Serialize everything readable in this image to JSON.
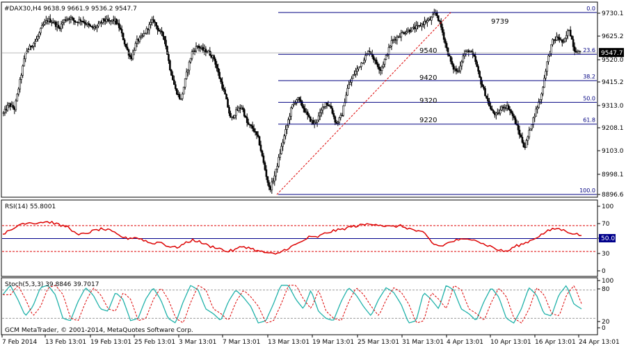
{
  "symbol_header": "#DAX30,H4  9638.9 9661.9 9536.2 9547.7",
  "footer_text": "GCM MetaTrader, © 2001-2014, MetaQuotes Software Corp.",
  "colors": {
    "up_candle": "#ffffff",
    "down_candle": "#000000",
    "rsi_line": "#dd0000",
    "rsi_levels": "#dd0000",
    "rsi_mid": "#00008b",
    "stoch_main": "#20b2aa",
    "stoch_signal": "#dd0000",
    "fib_line": "#000080",
    "trend_line": "#dd0000",
    "price_tag_bg": "#000000"
  },
  "chart_data": [
    {
      "type": "candlestick",
      "name": "price",
      "ylim": [
        8896.6,
        9730.1
      ],
      "price_ticks": [
        "9730.1",
        "9625.2",
        "9520.0",
        "9415.2",
        "9313.0",
        "9208.1",
        "9103.0",
        "8998.1",
        "8896.6"
      ],
      "current_price_tag": "9547.7",
      "fib_levels": [
        {
          "pct": "0.0",
          "price": 9735
        },
        {
          "pct": "23.6",
          "price": 9541
        },
        {
          "pct": "38.2",
          "price": 9420
        },
        {
          "pct": "50.0",
          "price": 9320
        },
        {
          "pct": "61.8",
          "price": 9220
        },
        {
          "pct": "100.0",
          "price": 8893
        }
      ],
      "annotations": [
        "9739",
        "9540",
        "9420",
        "9320",
        "9220"
      ],
      "trend_line": {
        "from_price": 8896,
        "to_price": 9735
      },
      "keypoints": [
        9270,
        9310,
        9290,
        9420,
        9550,
        9580,
        9610,
        9670,
        9700,
        9690,
        9660,
        9700,
        9710,
        9690,
        9700,
        9680,
        9660,
        9670,
        9700,
        9690,
        9700,
        9660,
        9580,
        9520,
        9600,
        9620,
        9660,
        9700,
        9650,
        9620,
        9480,
        9380,
        9330,
        9450,
        9550,
        9580,
        9560,
        9550,
        9520,
        9430,
        9350,
        9240,
        9280,
        9300,
        9220,
        9200,
        9150,
        9030,
        8915,
        8990,
        9100,
        9200,
        9300,
        9340,
        9300,
        9250,
        9220,
        9260,
        9320,
        9300,
        9220,
        9260,
        9380,
        9440,
        9480,
        9520,
        9560,
        9510,
        9470,
        9530,
        9600,
        9620,
        9640,
        9650,
        9660,
        9670,
        9690,
        9700,
        9735,
        9660,
        9560,
        9480,
        9460,
        9540,
        9560,
        9520,
        9420,
        9350,
        9280,
        9260,
        9300,
        9300,
        9250,
        9180,
        9110,
        9200,
        9280,
        9350,
        9500,
        9600,
        9620,
        9590,
        9660,
        9560,
        9548
      ],
      "series": [
        {
          "name": "RSI(14) 55.8001",
          "levels": [
            70,
            50,
            30
          ],
          "ylim": [
            0,
            100
          ],
          "ticks": [
            "100",
            "70",
            "50.0",
            "30",
            "0"
          ],
          "current": "50.0",
          "keypoints": [
            58,
            62,
            72,
            75,
            74,
            76,
            75,
            70,
            68,
            55,
            58,
            62,
            65,
            62,
            55,
            50,
            52,
            48,
            42,
            45,
            38,
            36,
            42,
            48,
            44,
            38,
            36,
            30,
            32,
            38,
            35,
            30,
            28,
            25,
            32,
            38,
            44,
            52,
            52,
            58,
            62,
            64,
            68,
            70,
            72,
            73,
            70,
            68,
            70,
            66,
            62,
            58,
            42,
            38,
            44,
            48,
            48,
            50,
            42,
            38,
            32,
            30,
            38,
            42,
            48,
            55,
            62,
            66,
            62,
            58,
            55
          ]
        },
        {
          "name": "Stoch(5,3,3) 39.8846 39.7017",
          "levels": [
            80,
            20
          ],
          "ylim": [
            0,
            100
          ],
          "ticks": [
            "100",
            "80",
            "20",
            "0"
          ],
          "keypoints": [
            70,
            90,
            60,
            25,
            45,
            85,
            90,
            70,
            20,
            15,
            55,
            85,
            70,
            40,
            35,
            75,
            60,
            15,
            20,
            60,
            85,
            60,
            20,
            10,
            55,
            90,
            80,
            40,
            30,
            15,
            55,
            80,
            65,
            45,
            10,
            15,
            50,
            90,
            90,
            60,
            40,
            80,
            35,
            20,
            15,
            55,
            85,
            70,
            45,
            25,
            60,
            85,
            75,
            50,
            10,
            15,
            75,
            60,
            40,
            90,
            80,
            40,
            30,
            15,
            55,
            85,
            65,
            20,
            10,
            40,
            85,
            70,
            30,
            25,
            70,
            90,
            50,
            40
          ]
        }
      ],
      "date_labels": [
        "7 Feb 2014",
        "13 Feb 13:01",
        "19 Feb 13:01",
        "25 Feb 13:01",
        "3 Mar 13:01",
        "7 Mar 13:01",
        "13 Mar 13:01",
        "19 Mar 13:01",
        "25 Mar 13:01",
        "31 Mar 13:01",
        "4 Apr 13:01",
        "10 Apr 13:01",
        "16 Apr 13:01",
        "24 Apr 13:01"
      ]
    }
  ]
}
